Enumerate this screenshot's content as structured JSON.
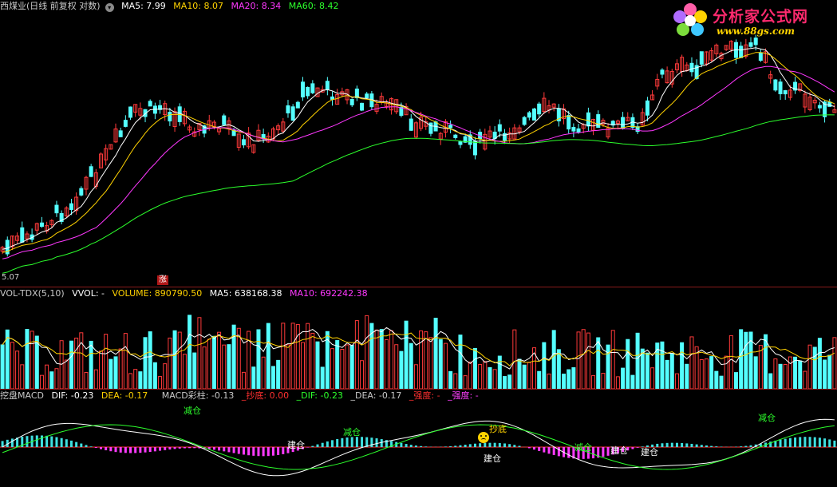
{
  "price_header": {
    "title": "西煤业(日线 前复权 对数)",
    "ma5": "MA5: 7.99",
    "ma10": "MA10: 8.07",
    "ma20": "MA20: 8.34",
    "ma60": "MA60: 8.42"
  },
  "logo": {
    "title": "分析家公式网",
    "url": "www.88gs.com"
  },
  "price_low_label": "5.07",
  "zhang_mark": "涨",
  "volume_header": {
    "name": "VOL-TDX(5,10)",
    "vvol": "VVOL: -",
    "volume": "VOLUME: 890790.50",
    "ma5": "MA5: 638168.38",
    "ma10": "MA10: 692242.38"
  },
  "macd_header": {
    "name": "挖盘MACD",
    "dif": "DIF: -0.23",
    "dea": "DEA: -0.17",
    "macd_col": "MACD彩柱: -0.13",
    "chaodi": "_抄底: 0.00",
    "dif2": "_DIF: -0.23",
    "dea2": "_DEA: -0.17",
    "strength": "_强度: -",
    "strength2": "_强度: -"
  },
  "signals": {
    "jiancang": "减仓",
    "jincang": "建仓",
    "chaodi": "抄底"
  },
  "colors": {
    "up": "#ff3a3a",
    "down": "#54ffff",
    "ma5": "#ffffff",
    "ma10": "#ffd200",
    "ma20": "#ff38ff",
    "ma60": "#2cff2c",
    "separator": "#8b1a1a"
  },
  "chart_data": [
    {
      "type": "candlestick",
      "title": "西煤业(日线 前复权 对数)",
      "series": [
        {
          "name": "MA5",
          "last": 7.99
        },
        {
          "name": "MA10",
          "last": 8.07
        },
        {
          "name": "MA20",
          "last": 8.34
        },
        {
          "name": "MA60",
          "last": 8.42
        }
      ],
      "price_low": 5.07
    },
    {
      "type": "bar",
      "title": "VOL-TDX(5,10)",
      "series": [
        {
          "name": "VOLUME",
          "last": 890790.5
        },
        {
          "name": "MA5",
          "last": 638168.38
        },
        {
          "name": "MA10",
          "last": 692242.38
        }
      ]
    },
    {
      "type": "bar",
      "title": "挖盘MACD",
      "series": [
        {
          "name": "DIF",
          "last": -0.23
        },
        {
          "name": "DEA",
          "last": -0.17
        },
        {
          "name": "MACD彩柱",
          "last": -0.13
        }
      ]
    }
  ]
}
